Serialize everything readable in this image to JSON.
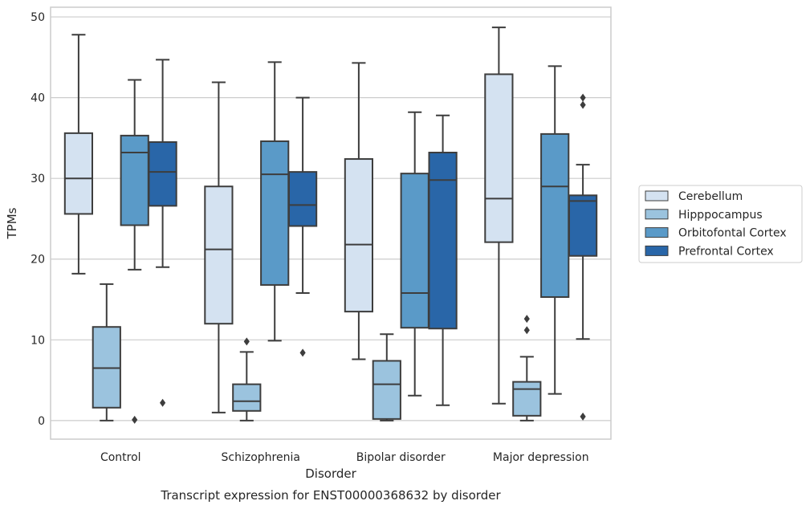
{
  "chart_data": {
    "type": "box",
    "caption": "Transcript expression for ENST00000368632 by disorder",
    "xlabel": "Disorder",
    "ylabel": "TPMs",
    "ylim": [
      -2.3,
      51.2
    ],
    "yticks": [
      0,
      10,
      20,
      30,
      40,
      50
    ],
    "grid": "horizontal",
    "legend_position": "right",
    "categories": [
      "Control",
      "Schizophrenia",
      "Bipolar disorder",
      "Major depression"
    ],
    "series": [
      {
        "name": "Cerebellum",
        "color": "#d4e2f1",
        "boxes": [
          {
            "whisker_low": 18.2,
            "q1": 25.6,
            "median": 30.0,
            "q3": 35.6,
            "whisker_high": 47.8,
            "outliers": []
          },
          {
            "whisker_low": 1.0,
            "q1": 12.0,
            "median": 21.2,
            "q3": 29.0,
            "whisker_high": 41.9,
            "outliers": []
          },
          {
            "whisker_low": 7.6,
            "q1": 13.5,
            "median": 21.8,
            "q3": 32.4,
            "whisker_high": 44.3,
            "outliers": []
          },
          {
            "whisker_low": 2.1,
            "q1": 22.1,
            "median": 27.5,
            "q3": 42.9,
            "whisker_high": 48.7,
            "outliers": []
          }
        ]
      },
      {
        "name": "Hipppocampus",
        "color": "#9bc3de",
        "boxes": [
          {
            "whisker_low": 0.0,
            "q1": 1.6,
            "median": 6.5,
            "q3": 11.6,
            "whisker_high": 16.9,
            "outliers": []
          },
          {
            "whisker_low": 0.0,
            "q1": 1.2,
            "median": 2.4,
            "q3": 4.5,
            "whisker_high": 8.5,
            "outliers": [
              9.8
            ]
          },
          {
            "whisker_low": 0.0,
            "q1": 0.2,
            "median": 4.5,
            "q3": 7.4,
            "whisker_high": 10.7,
            "outliers": []
          },
          {
            "whisker_low": 0.0,
            "q1": 0.6,
            "median": 3.9,
            "q3": 4.8,
            "whisker_high": 7.9,
            "outliers": [
              11.2,
              12.6
            ]
          }
        ]
      },
      {
        "name": "Orbitofontal Cortex",
        "color": "#5a9ac8",
        "boxes": [
          {
            "whisker_low": 18.7,
            "q1": 24.2,
            "median": 33.2,
            "q3": 35.3,
            "whisker_high": 42.2,
            "outliers": [
              0.1
            ]
          },
          {
            "whisker_low": 9.9,
            "q1": 16.8,
            "median": 30.5,
            "q3": 34.6,
            "whisker_high": 44.4,
            "outliers": []
          },
          {
            "whisker_low": 3.1,
            "q1": 11.5,
            "median": 15.8,
            "q3": 30.6,
            "whisker_high": 38.2,
            "outliers": []
          },
          {
            "whisker_low": 3.3,
            "q1": 15.3,
            "median": 29.0,
            "q3": 35.5,
            "whisker_high": 43.9,
            "outliers": []
          }
        ]
      },
      {
        "name": "Prefrontal Cortex",
        "color": "#2966a8",
        "boxes": [
          {
            "whisker_low": 19.0,
            "q1": 26.6,
            "median": 30.8,
            "q3": 34.5,
            "whisker_high": 44.7,
            "outliers": [
              2.2
            ]
          },
          {
            "whisker_low": 15.8,
            "q1": 24.1,
            "median": 26.7,
            "q3": 30.8,
            "whisker_high": 40.0,
            "outliers": [
              8.4
            ]
          },
          {
            "whisker_low": 1.9,
            "q1": 11.4,
            "median": 29.8,
            "q3": 33.2,
            "whisker_high": 37.8,
            "outliers": []
          },
          {
            "whisker_low": 10.1,
            "q1": 20.4,
            "median": 27.2,
            "q3": 27.9,
            "whisker_high": 31.7,
            "outliers": [
              0.5,
              39.1,
              40.0
            ]
          }
        ]
      }
    ]
  }
}
